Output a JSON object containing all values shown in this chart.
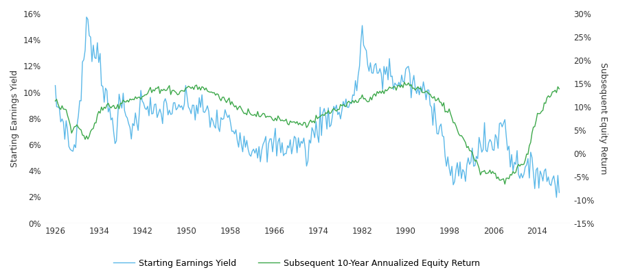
{
  "left_ylabel": "Starting Earnings Yield",
  "right_ylabel": "Subsequent Equity Return",
  "left_ylim": [
    0,
    0.16
  ],
  "right_ylim": [
    -0.15,
    0.3
  ],
  "left_yticks": [
    0,
    0.02,
    0.04,
    0.06,
    0.08,
    0.1,
    0.12,
    0.14,
    0.16
  ],
  "right_yticks": [
    -0.15,
    -0.1,
    -0.05,
    0.0,
    0.05,
    0.1,
    0.15,
    0.2,
    0.25,
    0.3
  ],
  "xticks": [
    1926,
    1934,
    1942,
    1950,
    1958,
    1966,
    1974,
    1982,
    1990,
    1998,
    2006,
    2014
  ],
  "xlim": [
    1924,
    2020
  ],
  "line1_color": "#5BB8E8",
  "line2_color": "#3DA84A",
  "legend_labels": [
    "Starting Earnings Yield",
    "Subsequent 10-Year Annualized Equity Return"
  ],
  "years": [
    1926,
    1927,
    1928,
    1929,
    1930,
    1931,
    1932,
    1933,
    1934,
    1935,
    1936,
    1937,
    1938,
    1939,
    1940,
    1941,
    1942,
    1943,
    1944,
    1945,
    1946,
    1947,
    1948,
    1949,
    1950,
    1951,
    1952,
    1953,
    1954,
    1955,
    1956,
    1957,
    1958,
    1959,
    1960,
    1961,
    1962,
    1963,
    1964,
    1965,
    1966,
    1967,
    1968,
    1969,
    1970,
    1971,
    1972,
    1973,
    1974,
    1975,
    1976,
    1977,
    1978,
    1979,
    1980,
    1981,
    1982,
    1983,
    1984,
    1985,
    1986,
    1987,
    1988,
    1989,
    1990,
    1991,
    1992,
    1993,
    1994,
    1995,
    1996,
    1997,
    1998,
    1999,
    2000,
    2001,
    2002,
    2003,
    2004,
    2005,
    2006,
    2007,
    2008,
    2009,
    2010,
    2011,
    2012,
    2013,
    2014,
    2015,
    2016,
    2017,
    2018
  ],
  "ey_values": [
    0.095,
    0.082,
    0.072,
    0.052,
    0.072,
    0.115,
    0.158,
    0.128,
    0.133,
    0.097,
    0.082,
    0.07,
    0.093,
    0.08,
    0.072,
    0.08,
    0.098,
    0.09,
    0.082,
    0.082,
    0.09,
    0.087,
    0.082,
    0.09,
    0.092,
    0.088,
    0.087,
    0.088,
    0.082,
    0.077,
    0.075,
    0.082,
    0.075,
    0.07,
    0.068,
    0.06,
    0.058,
    0.059,
    0.056,
    0.056,
    0.062,
    0.058,
    0.058,
    0.058,
    0.062,
    0.06,
    0.054,
    0.068,
    0.073,
    0.082,
    0.082,
    0.085,
    0.086,
    0.092,
    0.092,
    0.1,
    0.148,
    0.122,
    0.112,
    0.118,
    0.112,
    0.118,
    0.108,
    0.104,
    0.118,
    0.106,
    0.102,
    0.1,
    0.098,
    0.088,
    0.078,
    0.062,
    0.037,
    0.034,
    0.037,
    0.042,
    0.048,
    0.056,
    0.06,
    0.059,
    0.062,
    0.068,
    0.08,
    0.052,
    0.046,
    0.042,
    0.04,
    0.038,
    0.042,
    0.037,
    0.034,
    0.033,
    0.033
  ],
  "ret_values": [
    0.112,
    0.1,
    0.09,
    0.055,
    0.06,
    0.042,
    0.03,
    0.055,
    0.092,
    0.097,
    0.105,
    0.097,
    0.112,
    0.115,
    0.118,
    0.118,
    0.12,
    0.132,
    0.135,
    0.14,
    0.138,
    0.138,
    0.132,
    0.13,
    0.142,
    0.142,
    0.142,
    0.138,
    0.135,
    0.13,
    0.12,
    0.115,
    0.112,
    0.1,
    0.095,
    0.09,
    0.087,
    0.083,
    0.08,
    0.078,
    0.075,
    0.075,
    0.07,
    0.068,
    0.065,
    0.065,
    0.063,
    0.07,
    0.073,
    0.082,
    0.088,
    0.092,
    0.097,
    0.102,
    0.108,
    0.112,
    0.118,
    0.118,
    0.12,
    0.128,
    0.132,
    0.14,
    0.14,
    0.145,
    0.148,
    0.145,
    0.14,
    0.135,
    0.13,
    0.118,
    0.112,
    0.1,
    0.088,
    0.062,
    0.04,
    0.022,
    0.003,
    -0.022,
    -0.042,
    -0.04,
    -0.038,
    -0.055,
    -0.06,
    -0.052,
    -0.038,
    -0.028,
    -0.01,
    0.042,
    0.08,
    0.1,
    0.12,
    0.132,
    0.142
  ]
}
